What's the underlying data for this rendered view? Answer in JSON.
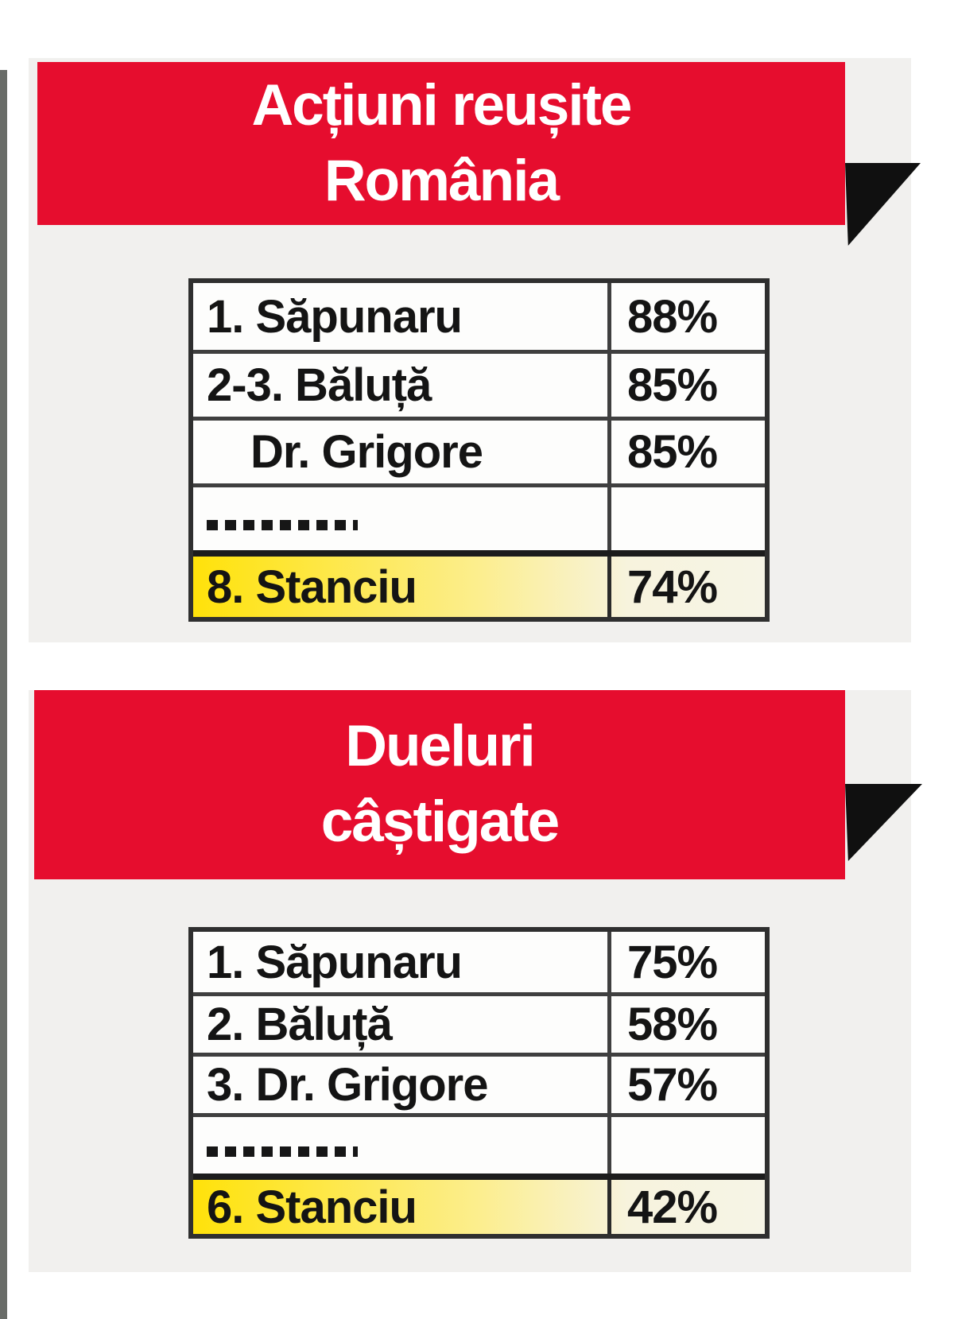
{
  "colors": {
    "accent_red": "#e60d2e",
    "banner_text": "#ffffff",
    "panel_gray": "#f1f0ee",
    "stripe_gray": "#696c68",
    "triangle_black": "#101010",
    "border_dark": "#2f2f2f",
    "line_gray": "#3f3f3f",
    "text_black": "#141414",
    "highlight_yellow": "#ffe20a",
    "highlight_fade": "#f7f3dd"
  },
  "sections": [
    {
      "banner": {
        "line1": "Acțiuni reușite",
        "line2": "România"
      },
      "rows": [
        {
          "label": "1. Săpunaru",
          "value": "88%"
        },
        {
          "label": "2-3. Băluță",
          "value": "85%"
        },
        {
          "label": "Dr. Grigore",
          "value": "85%",
          "indent": true
        },
        {
          "separator": true,
          "label": "",
          "value": ""
        },
        {
          "label": "8. Stanciu",
          "value": "74%",
          "highlight": true
        }
      ]
    },
    {
      "banner": {
        "line1": "Dueluri",
        "line2": "câștigate"
      },
      "rows": [
        {
          "label": "1. Săpunaru",
          "value": "75%"
        },
        {
          "label": "2. Băluță",
          "value": "58%"
        },
        {
          "label": "3. Dr. Grigore",
          "value": "57%"
        },
        {
          "separator": true,
          "label": "",
          "value": ""
        },
        {
          "label": "6. Stanciu",
          "value": "42%",
          "highlight": true
        }
      ]
    }
  ],
  "chart_data": [
    {
      "type": "table",
      "title": "Acțiuni reușite România",
      "rows": [
        [
          "1. Săpunaru",
          "88%"
        ],
        [
          "2-3. Băluță",
          "85%"
        ],
        [
          "Dr. Grigore",
          "85%"
        ],
        [
          "8. Stanciu",
          "74%"
        ]
      ],
      "highlighted_row": "8. Stanciu",
      "separator_between": [
        "Dr. Grigore",
        "8. Stanciu"
      ]
    },
    {
      "type": "table",
      "title": "Dueluri câștigate",
      "rows": [
        [
          "1. Săpunaru",
          "75%"
        ],
        [
          "2. Băluță",
          "58%"
        ],
        [
          "3. Dr. Grigore",
          "57%"
        ],
        [
          "6. Stanciu",
          "42%"
        ]
      ],
      "highlighted_row": "6. Stanciu",
      "separator_between": [
        "3. Dr. Grigore",
        "6. Stanciu"
      ]
    }
  ]
}
